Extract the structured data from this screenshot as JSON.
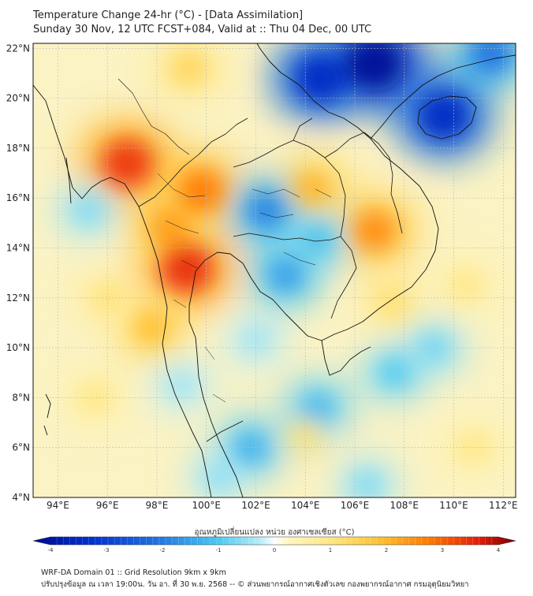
{
  "title": {
    "line1": "Temperature Change 24-hr (°C) - [Data Assimilation]",
    "line2": "Sunday 30 Nov, 12 UTC FCST+084, Valid at :: Thu 04 Dec, 00 UTC"
  },
  "axes": {
    "x_ticks": [
      "94°E",
      "96°E",
      "98°E",
      "100°E",
      "102°E",
      "104°E",
      "106°E",
      "108°E",
      "110°E",
      "112°E"
    ],
    "y_ticks": [
      "22°N",
      "20°N",
      "18°N",
      "16°N",
      "14°N",
      "12°N",
      "10°N",
      "8°N",
      "6°N",
      "4°N"
    ],
    "lon_range": [
      93,
      112.5
    ],
    "lat_range": [
      4,
      22.2
    ],
    "grid": true
  },
  "colorbar": {
    "label": "อุณหภูมิเปลี่ยนแปลง หน่วย องศาเซลเซียส (°C)",
    "ticks": [
      "-4",
      "-3",
      "-2",
      "-1",
      "0",
      "1",
      "2",
      "3",
      "4"
    ],
    "range": [
      -4,
      4
    ]
  },
  "footer": {
    "line1": "WRF-DA Domain 01 :: Grid Resolution 9km x 9km",
    "line2": "ปรับปรุงข้อมูล ณ เวลา 19:00น. วัน อา. ที่ 30 พ.ย. 2568 -- © ส่วนพยากรณ์อากาศเชิงตัวเลข กองพยากรณ์อากาศ กรมอุตุนิยมวิทยา"
  },
  "colors": {
    "cold_extreme": "#000a8f",
    "cold": "#1e6fe0",
    "cool": "#48c8f0",
    "neutral": "#ffffff",
    "warm": "#ffe680",
    "hot": "#ff7a00",
    "hot_extreme": "#e61e0a",
    "border": "#111111",
    "grid": "#bbbbbb"
  },
  "field_features": [
    {
      "lon": 96.8,
      "lat": 17.4,
      "value": 3.2
    },
    {
      "lon": 99.2,
      "lat": 13.2,
      "value": 3.3
    },
    {
      "lon": 99.8,
      "lat": 16.3,
      "value": 2.6
    },
    {
      "lon": 98.5,
      "lat": 14.8,
      "value": 2.2
    },
    {
      "lon": 106.8,
      "lat": 14.7,
      "value": 2.4
    },
    {
      "lon": 104.3,
      "lat": 16.4,
      "value": 1.9
    },
    {
      "lon": 97.8,
      "lat": 10.8,
      "value": 1.8
    },
    {
      "lon": 99.3,
      "lat": 21.2,
      "value": 1.4
    },
    {
      "lon": 107.5,
      "lat": 11.8,
      "value": 1.2
    },
    {
      "lon": 96.0,
      "lat": 12.0,
      "value": 1.1
    },
    {
      "lon": 95.5,
      "lat": 8.0,
      "value": 1.0
    },
    {
      "lon": 104.0,
      "lat": 6.5,
      "value": 1.1
    },
    {
      "lon": 110.5,
      "lat": 12.5,
      "value": 1.0
    },
    {
      "lon": 110.8,
      "lat": 6.0,
      "value": 1.0
    },
    {
      "lon": 106.8,
      "lat": 21.4,
      "value": -3.9
    },
    {
      "lon": 104.6,
      "lat": 20.8,
      "value": -3.2
    },
    {
      "lon": 109.6,
      "lat": 19.3,
      "value": -3.2
    },
    {
      "lon": 111.5,
      "lat": 21.8,
      "value": -2.0
    },
    {
      "lon": 102.4,
      "lat": 15.5,
      "value": -1.8
    },
    {
      "lon": 103.2,
      "lat": 12.9,
      "value": -1.5
    },
    {
      "lon": 104.5,
      "lat": 14.3,
      "value": -1.1
    },
    {
      "lon": 101.8,
      "lat": 6.0,
      "value": -1.3
    },
    {
      "lon": 104.5,
      "lat": 7.6,
      "value": -1.2
    },
    {
      "lon": 107.6,
      "lat": 9.0,
      "value": -1.0
    },
    {
      "lon": 109.2,
      "lat": 10.0,
      "value": -0.8
    },
    {
      "lon": 95.2,
      "lat": 15.5,
      "value": -0.7
    },
    {
      "lon": 99.0,
      "lat": 8.5,
      "value": -0.5
    },
    {
      "lon": 102.0,
      "lat": 10.3,
      "value": -0.5
    },
    {
      "lon": 100.5,
      "lat": 4.8,
      "value": -0.6
    },
    {
      "lon": 106.5,
      "lat": 4.5,
      "value": -0.7
    }
  ]
}
